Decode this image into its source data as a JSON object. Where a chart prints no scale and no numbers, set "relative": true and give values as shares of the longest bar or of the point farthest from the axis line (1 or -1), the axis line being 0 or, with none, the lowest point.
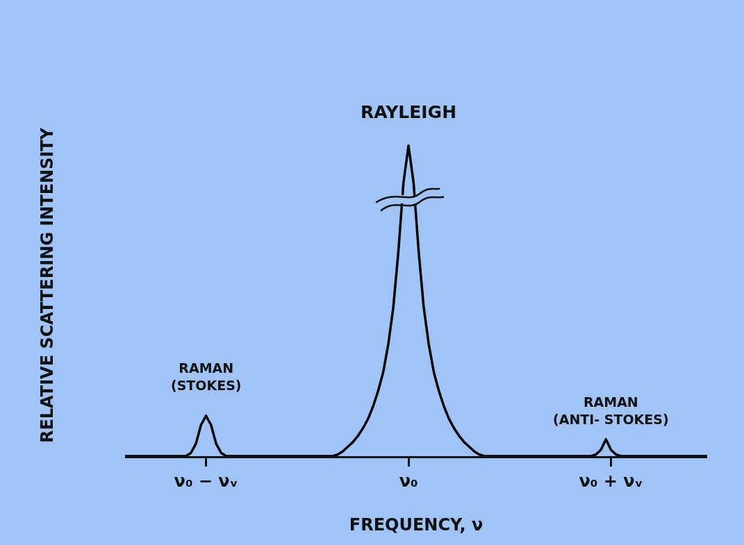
{
  "chart_data": {
    "type": "line",
    "relative": true,
    "color": "#000000",
    "xlabel": "FREQUENCY, ν",
    "ylabel": "RELATIVE SCATTERING INTENSITY",
    "categories": [
      null,
      null,
      null,
      null,
      null,
      null,
      null,
      null,
      null,
      null,
      null,
      null,
      null,
      null,
      null,
      null,
      "ν₀ − νᵥ",
      null,
      null,
      null,
      null,
      null,
      null,
      null,
      null,
      null,
      null,
      null,
      null,
      null,
      null,
      null,
      null,
      null,
      null,
      null,
      null,
      null,
      null,
      null,
      null,
      null,
      null,
      null,
      null,
      null,
      null,
      null,
      null,
      null,
      null,
      null,
      null,
      null,
      null,
      null,
      "ν₀",
      null,
      null,
      null,
      null,
      null,
      null,
      null,
      null,
      null,
      null,
      null,
      null,
      null,
      null,
      null,
      null,
      null,
      null,
      null,
      null,
      null,
      null,
      null,
      null,
      null,
      null,
      null,
      null,
      null,
      null,
      null,
      null,
      null,
      null,
      null,
      null,
      null,
      null,
      null,
      "ν₀ + νᵥ",
      null,
      null,
      null,
      null,
      null,
      null,
      null,
      null,
      null,
      null,
      null,
      null,
      null,
      null,
      null,
      null,
      null,
      null,
      null
    ],
    "values": [
      0,
      0,
      0,
      0,
      0,
      0,
      0,
      0,
      0,
      0,
      0,
      0,
      0,
      0.01,
      0.04,
      0.1,
      0.13,
      0.1,
      0.04,
      0.01,
      0,
      0,
      0,
      0,
      0,
      0,
      0,
      0,
      0,
      0,
      0,
      0,
      0,
      0,
      0,
      0,
      0,
      0,
      0,
      0,
      0,
      0,
      0.005,
      0.015,
      0.03,
      0.045,
      0.065,
      0.09,
      0.12,
      0.16,
      0.21,
      0.27,
      0.36,
      0.48,
      0.66,
      0.88,
      1,
      0.88,
      0.66,
      0.48,
      0.36,
      0.27,
      0.21,
      0.16,
      0.12,
      0.09,
      0.065,
      0.045,
      0.03,
      0.015,
      0.005,
      0,
      0,
      0,
      0,
      0,
      0,
      0,
      0,
      0,
      0,
      0,
      0,
      0,
      0,
      0,
      0,
      0,
      0,
      0,
      0,
      0,
      0,
      0.005,
      0.02,
      0.054,
      0.02,
      0.005,
      0,
      0,
      0,
      0,
      0,
      0,
      0,
      0,
      0,
      0,
      0,
      0,
      0,
      0,
      0,
      0,
      0,
      0
    ],
    "annotations": [
      "RAMAN\n(STOKES)",
      "RAYLEIGH",
      "RAMAN\n(ANTI- STOKES)"
    ]
  }
}
